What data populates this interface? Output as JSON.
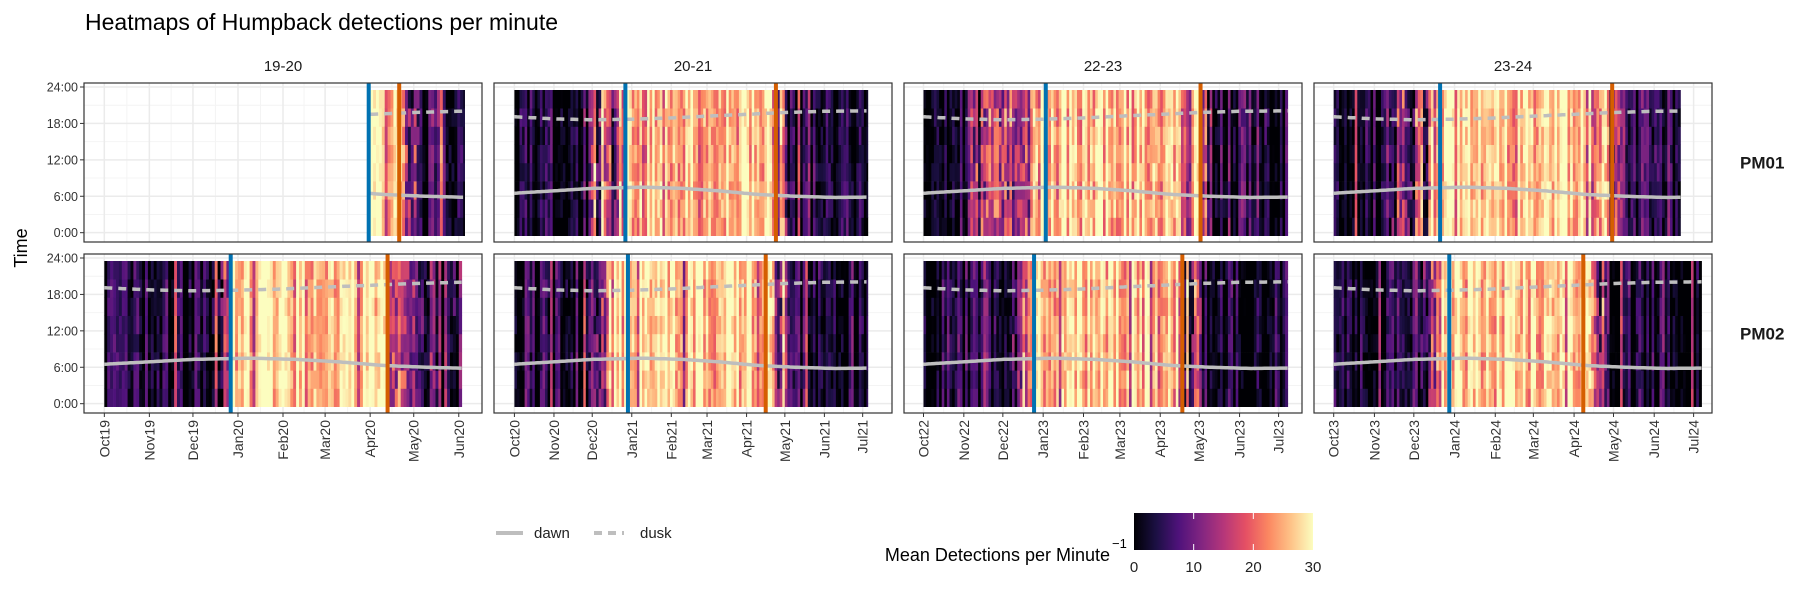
{
  "chart_data": {
    "type": "heatmap",
    "title": "Heatmaps of Humpback detections per minute",
    "xlabel": "",
    "ylabel": "Time",
    "y_ticks": [
      {
        "hour": 0,
        "label": "0:00"
      },
      {
        "hour": 6,
        "label": "6:00"
      },
      {
        "hour": 12,
        "label": "12:00"
      },
      {
        "hour": 18,
        "label": "18:00"
      },
      {
        "hour": 24,
        "label": "24:00"
      }
    ],
    "ylim": [
      0,
      24
    ],
    "grid": true,
    "facet_columns": [
      "19-20",
      "20-21",
      "22-23",
      "23-24"
    ],
    "facet_rows": [
      "PM01",
      "PM02"
    ],
    "columns": [
      {
        "label": "19-20",
        "xlim": [
          "2019-09-17",
          "2020-06-17"
        ],
        "x_ticks": [
          [
            "2019-10-01",
            "Oct19"
          ],
          [
            "2019-11-01",
            "Nov19"
          ],
          [
            "2019-12-01",
            "Dec19"
          ],
          [
            "2020-01-01",
            "Jan20"
          ],
          [
            "2020-02-01",
            "Feb20"
          ],
          [
            "2020-03-01",
            "Mar20"
          ],
          [
            "2020-04-01",
            "Apr20"
          ],
          [
            "2020-05-01",
            "May20"
          ],
          [
            "2020-06-01",
            "Jun20"
          ]
        ]
      },
      {
        "label": "20-21",
        "xlim": [
          "2020-09-15",
          "2021-07-24"
        ],
        "x_ticks": [
          [
            "2020-10-01",
            "Oct20"
          ],
          [
            "2020-11-01",
            "Nov20"
          ],
          [
            "2020-12-01",
            "Dec20"
          ],
          [
            "2021-01-01",
            "Jan21"
          ],
          [
            "2021-02-01",
            "Feb21"
          ],
          [
            "2021-03-01",
            "Mar21"
          ],
          [
            "2021-04-01",
            "Apr21"
          ],
          [
            "2021-05-01",
            "May21"
          ],
          [
            "2021-06-01",
            "Jun21"
          ],
          [
            "2021-07-01",
            "Jul21"
          ]
        ]
      },
      {
        "label": "22-23",
        "xlim": [
          "2022-09-16",
          "2023-07-19"
        ],
        "x_ticks": [
          [
            "2022-10-01",
            "Oct22"
          ],
          [
            "2022-11-01",
            "Nov22"
          ],
          [
            "2022-12-01",
            "Dec22"
          ],
          [
            "2023-01-01",
            "Jan23"
          ],
          [
            "2023-02-01",
            "Feb23"
          ],
          [
            "2023-03-01",
            "Mar23"
          ],
          [
            "2023-04-01",
            "Apr23"
          ],
          [
            "2023-05-01",
            "May23"
          ],
          [
            "2023-06-01",
            "Jun23"
          ],
          [
            "2023-07-01",
            "Jul23"
          ]
        ]
      },
      {
        "label": "23-24",
        "xlim": [
          "2023-09-16",
          "2024-07-15"
        ],
        "x_ticks": [
          [
            "2023-10-01",
            "Oct23"
          ],
          [
            "2023-11-01",
            "Nov23"
          ],
          [
            "2023-12-01",
            "Dec23"
          ],
          [
            "2024-01-01",
            "Jan24"
          ],
          [
            "2024-02-01",
            "Feb24"
          ],
          [
            "2024-03-01",
            "Mar24"
          ],
          [
            "2024-04-01",
            "Apr24"
          ],
          [
            "2024-05-01",
            "May24"
          ],
          [
            "2024-06-01",
            "Jun24"
          ],
          [
            "2024-07-01",
            "Jul24"
          ]
        ]
      }
    ],
    "panels": [
      {
        "row": "PM01",
        "col": "19-20",
        "data_range": [
          "2020-04-01",
          "2020-06-05"
        ],
        "mean_profile": [
          [
            "2020-04-01",
            29
          ],
          [
            "2020-04-18",
            27
          ],
          [
            "2020-04-26",
            16
          ],
          [
            "2020-05-05",
            5
          ],
          [
            "2020-06-05",
            2
          ]
        ],
        "blue_line": "2020-03-31",
        "orange_line": "2020-04-21"
      },
      {
        "row": "PM01",
        "col": "20-21",
        "data_range": [
          "2020-10-01",
          "2021-07-05"
        ],
        "mean_profile": [
          [
            "2020-10-01",
            2
          ],
          [
            "2020-11-20",
            3
          ],
          [
            "2020-12-01",
            12
          ],
          [
            "2020-12-15",
            16
          ],
          [
            "2020-12-27",
            26
          ],
          [
            "2021-04-18",
            27
          ],
          [
            "2021-04-28",
            18
          ],
          [
            "2021-05-06",
            4
          ],
          [
            "2021-07-05",
            2
          ]
        ],
        "blue_line": "2020-12-27",
        "orange_line": "2021-04-24"
      },
      {
        "row": "PM01",
        "col": "22-23",
        "data_range": [
          "2022-10-01",
          "2023-07-08"
        ],
        "mean_profile": [
          [
            "2022-10-01",
            2
          ],
          [
            "2022-11-01",
            3
          ],
          [
            "2022-11-15",
            14
          ],
          [
            "2022-12-15",
            18
          ],
          [
            "2023-01-03",
            27
          ],
          [
            "2023-04-28",
            26
          ],
          [
            "2023-05-08",
            6
          ],
          [
            "2023-07-08",
            2
          ]
        ],
        "blue_line": "2023-01-03",
        "orange_line": "2023-05-02"
      },
      {
        "row": "PM01",
        "col": "23-24",
        "data_range": [
          "2023-10-01",
          "2024-06-21"
        ],
        "mean_profile": [
          [
            "2023-10-01",
            2
          ],
          [
            "2023-11-08",
            3
          ],
          [
            "2023-11-20",
            14
          ],
          [
            "2023-12-10",
            16
          ],
          [
            "2023-12-18",
            28
          ],
          [
            "2024-04-03",
            27
          ],
          [
            "2024-04-25",
            18
          ],
          [
            "2024-05-10",
            4
          ],
          [
            "2024-06-21",
            2
          ]
        ],
        "blue_line": "2023-12-21",
        "orange_line": "2024-04-30"
      },
      {
        "row": "PM02",
        "col": "19-20",
        "data_range": [
          "2019-10-01",
          "2020-06-03"
        ],
        "mean_profile": [
          [
            "2019-10-01",
            2
          ],
          [
            "2019-12-10",
            3
          ],
          [
            "2019-12-18",
            14
          ],
          [
            "2019-12-28",
            28
          ],
          [
            "2020-04-05",
            28
          ],
          [
            "2020-04-15",
            20
          ],
          [
            "2020-04-25",
            8
          ],
          [
            "2020-06-03",
            6
          ]
        ],
        "blue_line": "2019-12-27",
        "orange_line": "2020-04-13"
      },
      {
        "row": "PM02",
        "col": "20-21",
        "data_range": [
          "2020-10-01",
          "2021-07-05"
        ],
        "mean_profile": [
          [
            "2020-10-01",
            3
          ],
          [
            "2020-11-25",
            4
          ],
          [
            "2020-12-05",
            15
          ],
          [
            "2020-12-20",
            27
          ],
          [
            "2021-04-18",
            27
          ],
          [
            "2021-04-28",
            15
          ],
          [
            "2021-05-05",
            3
          ],
          [
            "2021-07-05",
            2
          ]
        ],
        "blue_line": "2020-12-29",
        "orange_line": "2021-04-16"
      },
      {
        "row": "PM02",
        "col": "22-23",
        "data_range": [
          "2022-10-01",
          "2023-07-08"
        ],
        "mean_profile": [
          [
            "2022-10-01",
            2
          ],
          [
            "2022-12-05",
            3
          ],
          [
            "2022-12-12",
            18
          ],
          [
            "2022-12-22",
            27
          ],
          [
            "2023-04-10",
            27
          ],
          [
            "2023-04-22",
            15
          ],
          [
            "2023-05-08",
            3
          ],
          [
            "2023-07-08",
            2
          ]
        ],
        "blue_line": "2022-12-25",
        "orange_line": "2023-04-18"
      },
      {
        "row": "PM02",
        "col": "23-24",
        "data_range": [
          "2023-10-01",
          "2024-07-07"
        ],
        "mean_profile": [
          [
            "2023-10-01",
            2
          ],
          [
            "2023-12-01",
            3
          ],
          [
            "2023-12-12",
            18
          ],
          [
            "2023-12-28",
            27
          ],
          [
            "2024-04-08",
            27
          ],
          [
            "2024-04-20",
            15
          ],
          [
            "2024-04-30",
            3
          ],
          [
            "2024-07-07",
            2
          ]
        ],
        "blue_line": "2023-12-28",
        "orange_line": "2024-04-08"
      }
    ],
    "dawn_hours": [
      [
        "10-01",
        6.5
      ],
      [
        "11-01",
        6.9
      ],
      [
        "12-01",
        7.3
      ],
      [
        "01-10",
        7.5
      ],
      [
        "02-10",
        7.3
      ],
      [
        "03-10",
        6.9
      ],
      [
        "04-10",
        6.3
      ],
      [
        "05-10",
        6.0
      ],
      [
        "06-10",
        5.8
      ],
      [
        "07-20",
        5.9
      ]
    ],
    "dusk_hours": [
      [
        "10-01",
        19.1
      ],
      [
        "11-01",
        18.75
      ],
      [
        "12-01",
        18.6
      ],
      [
        "01-01",
        18.7
      ],
      [
        "02-01",
        18.9
      ],
      [
        "03-01",
        19.2
      ],
      [
        "04-01",
        19.5
      ],
      [
        "05-01",
        19.8
      ],
      [
        "06-01",
        20.0
      ],
      [
        "07-20",
        20.1
      ]
    ],
    "line_colors": {
      "dawn_dusk": "#BEBEBE",
      "blue_line": "#0072B2",
      "orange_line": "#D55E00"
    },
    "legend": {
      "position": "bottom",
      "lines": [
        {
          "label": "dawn",
          "style": "solid"
        },
        {
          "label": "dusk",
          "style": "dashed"
        }
      ],
      "colorbar": {
        "title": "Mean Detections per Minute",
        "title_superscript": "−1",
        "palette": "magma",
        "limits": [
          0,
          30
        ],
        "ticks": [
          "0",
          "10",
          "20",
          "30"
        ],
        "colors": [
          "#000004",
          "#1C1044",
          "#4F127B",
          "#812581",
          "#B5367A",
          "#E55064",
          "#FB8761",
          "#FEC287",
          "#FCFDBF"
        ]
      }
    }
  }
}
